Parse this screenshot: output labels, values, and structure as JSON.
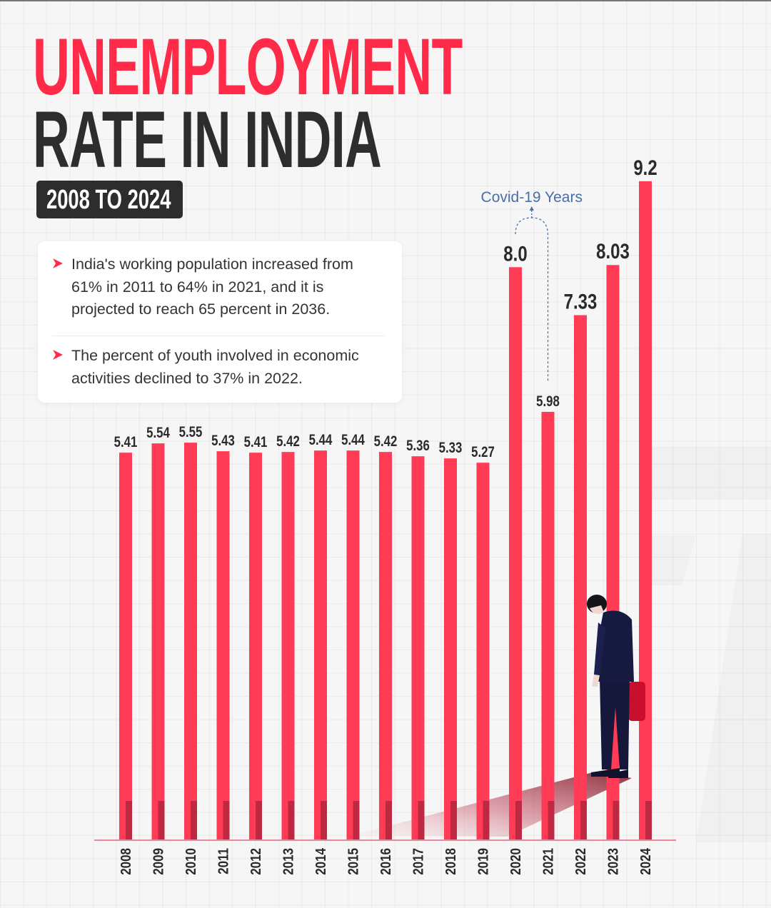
{
  "header": {
    "title_line1": "UNEMPLOYMENT",
    "title_line2": "RATE IN INDIA",
    "period": "2008 TO 2024"
  },
  "info_card": {
    "items": [
      {
        "icon": "chevron-right-icon",
        "text": "India's working population increased from 61% in 2011 to 64% in 2021, and it is projected to reach 65 percent in 2036."
      },
      {
        "icon": "chevron-right-icon",
        "text": "The percent of youth involved in economic activities declined to 37% in 2022."
      }
    ]
  },
  "colors": {
    "accent": "#ff3b55",
    "bar_shade": "#a8233a",
    "title_dark": "#2d2d2d",
    "covid_annotation": "#4a6fa5",
    "suit": "#15183a"
  },
  "chart_data": {
    "type": "bar",
    "title": "Unemployment Rate in India, 2008 to 2024",
    "xlabel": "",
    "ylabel": "",
    "categories": [
      "2008",
      "2009",
      "2010",
      "2011",
      "2012",
      "2013",
      "2014",
      "2015",
      "2016",
      "2017",
      "2018",
      "2019",
      "2020",
      "2021",
      "2022",
      "2023",
      "2024"
    ],
    "values": [
      5.41,
      5.54,
      5.55,
      5.43,
      5.41,
      5.42,
      5.44,
      5.44,
      5.42,
      5.36,
      5.33,
      5.27,
      8.0,
      5.98,
      7.33,
      8.03,
      9.2
    ],
    "value_labels": [
      "5.41",
      "5.54",
      "5.55",
      "5.43",
      "5.41",
      "5.42",
      "5.44",
      "5.44",
      "5.42",
      "5.36",
      "5.33",
      "5.27",
      "8.0",
      "5.98",
      "7.33",
      "8.03",
      "9.2"
    ],
    "ylim": [
      0,
      11.73
    ],
    "grid": false,
    "legend": "none",
    "annotations": [
      {
        "text": "Covid-19 Years",
        "spans": [
          "2020",
          "2021"
        ]
      }
    ]
  }
}
